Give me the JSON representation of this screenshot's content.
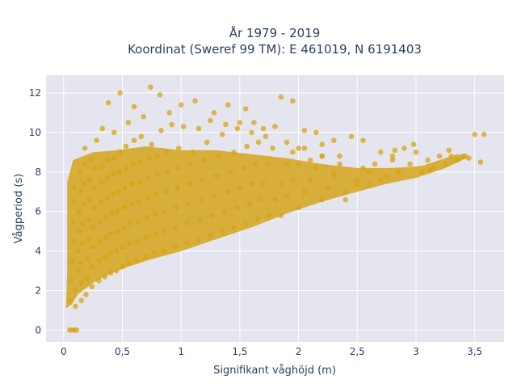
{
  "chart_data": {
    "type": "scatter",
    "title_lines": [
      "År 1979 - 2019",
      "Koordinat (Sweref 99 TM): E 461019, N 6191403"
    ],
    "xlabel": "Signifikant våghöjd (m)",
    "ylabel": "Vågperiod (s)",
    "xlim": [
      -0.15,
      3.75
    ],
    "ylim": [
      -0.6,
      12.9
    ],
    "x_ticks": [
      0,
      0.5,
      1,
      1.5,
      2,
      2.5,
      3,
      3.5
    ],
    "x_tick_labels": [
      "0",
      "0,5",
      "1",
      "1,5",
      "2",
      "2,5",
      "3",
      "3,5"
    ],
    "y_ticks": [
      0,
      2,
      4,
      6,
      8,
      10,
      12
    ],
    "y_tick_labels": [
      "0",
      "2",
      "4",
      "6",
      "8",
      "10",
      "12"
    ],
    "grid": true,
    "marker_color": "#d4a419",
    "background_color": "#e5e5ef",
    "series": [
      {
        "values_xy": [
          [
            0.05,
            0.0
          ],
          [
            0.07,
            0.0
          ],
          [
            0.09,
            0.0
          ],
          [
            0.11,
            0.0
          ],
          [
            0.05,
            1.5
          ],
          [
            0.06,
            2.5
          ],
          [
            0.07,
            3.5
          ],
          [
            0.08,
            4.5
          ],
          [
            0.08,
            5.5
          ],
          [
            0.09,
            6.5
          ],
          [
            0.09,
            7.2
          ],
          [
            0.1,
            1.2
          ],
          [
            0.1,
            2.0
          ],
          [
            0.12,
            3.0
          ],
          [
            0.12,
            4.0
          ],
          [
            0.13,
            5.0
          ],
          [
            0.13,
            6.0
          ],
          [
            0.14,
            7.0
          ],
          [
            0.14,
            8.0
          ],
          [
            0.15,
            1.5
          ],
          [
            0.15,
            2.4
          ],
          [
            0.15,
            3.4
          ],
          [
            0.16,
            4.4
          ],
          [
            0.16,
            5.4
          ],
          [
            0.17,
            6.4
          ],
          [
            0.17,
            7.4
          ],
          [
            0.18,
            8.4
          ],
          [
            0.18,
            9.2
          ],
          [
            0.19,
            1.8
          ],
          [
            0.2,
            2.6
          ],
          [
            0.2,
            3.6
          ],
          [
            0.21,
            4.6
          ],
          [
            0.21,
            5.6
          ],
          [
            0.22,
            6.6
          ],
          [
            0.22,
            7.6
          ],
          [
            0.23,
            8.6
          ],
          [
            0.24,
            2.2
          ],
          [
            0.24,
            3.2
          ],
          [
            0.25,
            4.2
          ],
          [
            0.25,
            5.2
          ],
          [
            0.26,
            6.2
          ],
          [
            0.26,
            7.2
          ],
          [
            0.27,
            8.2
          ],
          [
            0.28,
            9.6
          ],
          [
            0.3,
            2.5
          ],
          [
            0.3,
            3.5
          ],
          [
            0.31,
            4.5
          ],
          [
            0.31,
            5.5
          ],
          [
            0.32,
            6.5
          ],
          [
            0.32,
            7.5
          ],
          [
            0.33,
            8.3
          ],
          [
            0.33,
            10.2
          ],
          [
            0.35,
            2.7
          ],
          [
            0.35,
            3.7
          ],
          [
            0.36,
            4.7
          ],
          [
            0.36,
            5.7
          ],
          [
            0.37,
            6.7
          ],
          [
            0.37,
            7.7
          ],
          [
            0.38,
            8.6
          ],
          [
            0.38,
            11.5
          ],
          [
            0.4,
            2.9
          ],
          [
            0.4,
            3.9
          ],
          [
            0.41,
            4.9
          ],
          [
            0.41,
            5.9
          ],
          [
            0.42,
            6.9
          ],
          [
            0.42,
            7.9
          ],
          [
            0.43,
            8.7
          ],
          [
            0.43,
            10.0
          ],
          [
            0.45,
            3.0
          ],
          [
            0.45,
            4.0
          ],
          [
            0.46,
            5.0
          ],
          [
            0.46,
            6.0
          ],
          [
            0.47,
            7.0
          ],
          [
            0.47,
            8.0
          ],
          [
            0.48,
            9.0
          ],
          [
            0.48,
            12.0
          ],
          [
            0.5,
            3.2
          ],
          [
            0.5,
            4.2
          ],
          [
            0.51,
            5.2
          ],
          [
            0.52,
            6.2
          ],
          [
            0.52,
            7.2
          ],
          [
            0.53,
            8.2
          ],
          [
            0.53,
            9.3
          ],
          [
            0.55,
            10.5
          ],
          [
            0.56,
            3.4
          ],
          [
            0.56,
            4.4
          ],
          [
            0.57,
            5.4
          ],
          [
            0.58,
            6.4
          ],
          [
            0.58,
            7.4
          ],
          [
            0.59,
            8.4
          ],
          [
            0.6,
            9.6
          ],
          [
            0.6,
            11.3
          ],
          [
            0.62,
            3.5
          ],
          [
            0.63,
            4.5
          ],
          [
            0.63,
            5.5
          ],
          [
            0.64,
            6.5
          ],
          [
            0.65,
            7.5
          ],
          [
            0.65,
            8.5
          ],
          [
            0.66,
            9.8
          ],
          [
            0.68,
            10.8
          ],
          [
            0.7,
            3.7
          ],
          [
            0.7,
            4.7
          ],
          [
            0.71,
            5.7
          ],
          [
            0.72,
            6.7
          ],
          [
            0.72,
            7.7
          ],
          [
            0.73,
            8.7
          ],
          [
            0.74,
            12.3
          ],
          [
            0.75,
            9.4
          ],
          [
            0.77,
            3.9
          ],
          [
            0.78,
            4.9
          ],
          [
            0.78,
            5.9
          ],
          [
            0.79,
            6.9
          ],
          [
            0.8,
            7.9
          ],
          [
            0.8,
            8.8
          ],
          [
            0.82,
            11.9
          ],
          [
            0.83,
            10.1
          ],
          [
            0.85,
            4.0
          ],
          [
            0.86,
            5.0
          ],
          [
            0.86,
            6.0
          ],
          [
            0.87,
            7.0
          ],
          [
            0.88,
            8.0
          ],
          [
            0.88,
            9.0
          ],
          [
            0.9,
            11.0
          ],
          [
            0.92,
            10.4
          ],
          [
            0.95,
            4.2
          ],
          [
            0.95,
            5.2
          ],
          [
            0.96,
            6.2
          ],
          [
            0.97,
            7.2
          ],
          [
            0.97,
            8.2
          ],
          [
            0.98,
            9.2
          ],
          [
            1.0,
            11.4
          ],
          [
            1.02,
            10.3
          ],
          [
            1.05,
            4.4
          ],
          [
            1.05,
            5.4
          ],
          [
            1.06,
            6.4
          ],
          [
            1.07,
            7.4
          ],
          [
            1.08,
            8.4
          ],
          [
            1.1,
            9.0
          ],
          [
            1.12,
            11.6
          ],
          [
            1.15,
            10.2
          ],
          [
            1.15,
            4.6
          ],
          [
            1.16,
            5.6
          ],
          [
            1.17,
            6.6
          ],
          [
            1.18,
            7.6
          ],
          [
            1.2,
            8.6
          ],
          [
            1.22,
            9.5
          ],
          [
            1.25,
            10.6
          ],
          [
            1.28,
            11.0
          ],
          [
            1.25,
            4.8
          ],
          [
            1.26,
            5.8
          ],
          [
            1.28,
            6.8
          ],
          [
            1.3,
            7.8
          ],
          [
            1.32,
            8.8
          ],
          [
            1.35,
            9.9
          ],
          [
            1.38,
            10.4
          ],
          [
            1.4,
            11.4
          ],
          [
            1.35,
            5.0
          ],
          [
            1.37,
            6.0
          ],
          [
            1.4,
            7.0
          ],
          [
            1.42,
            8.0
          ],
          [
            1.45,
            9.0
          ],
          [
            1.48,
            10.2
          ],
          [
            1.5,
            10.5
          ],
          [
            1.55,
            11.2
          ],
          [
            1.45,
            5.2
          ],
          [
            1.48,
            6.2
          ],
          [
            1.5,
            7.2
          ],
          [
            1.53,
            8.2
          ],
          [
            1.56,
            9.3
          ],
          [
            1.6,
            10.0
          ],
          [
            1.62,
            10.5
          ],
          [
            1.7,
            10.2
          ],
          [
            1.55,
            5.4
          ],
          [
            1.58,
            6.4
          ],
          [
            1.6,
            7.4
          ],
          [
            1.63,
            8.4
          ],
          [
            1.66,
            9.5
          ],
          [
            1.72,
            9.8
          ],
          [
            1.8,
            10.3
          ],
          [
            1.85,
            11.8
          ],
          [
            1.65,
            5.6
          ],
          [
            1.68,
            6.6
          ],
          [
            1.7,
            7.4
          ],
          [
            1.74,
            8.4
          ],
          [
            1.78,
            9.2
          ],
          [
            1.9,
            9.5
          ],
          [
            1.95,
            11.6
          ],
          [
            2.0,
            9.2
          ],
          [
            1.75,
            5.8
          ],
          [
            1.8,
            6.6
          ],
          [
            1.85,
            7.4
          ],
          [
            1.9,
            8.4
          ],
          [
            1.95,
            9.0
          ],
          [
            2.05,
            10.1
          ],
          [
            2.1,
            8.6
          ],
          [
            2.2,
            9.4
          ],
          [
            1.85,
            5.8
          ],
          [
            1.9,
            6.8
          ],
          [
            1.95,
            7.6
          ],
          [
            2.0,
            8.4
          ],
          [
            2.05,
            9.2
          ],
          [
            2.15,
            10.0
          ],
          [
            2.2,
            8.8
          ],
          [
            2.3,
            9.6
          ],
          [
            2.0,
            6.2
          ],
          [
            2.05,
            7.0
          ],
          [
            2.1,
            7.6
          ],
          [
            2.15,
            8.2
          ],
          [
            2.2,
            8.8
          ],
          [
            2.25,
            7.2
          ],
          [
            2.3,
            7.8
          ],
          [
            2.35,
            8.4
          ],
          [
            2.2,
            6.6
          ],
          [
            2.25,
            7.2
          ],
          [
            2.3,
            8.0
          ],
          [
            2.35,
            8.8
          ],
          [
            2.4,
            6.6
          ],
          [
            2.45,
            9.8
          ],
          [
            2.5,
            7.6
          ],
          [
            2.55,
            9.6
          ],
          [
            2.4,
            7.0
          ],
          [
            2.5,
            7.4
          ],
          [
            2.55,
            8.2
          ],
          [
            2.6,
            7.4
          ],
          [
            2.65,
            8.4
          ],
          [
            2.7,
            9.0
          ],
          [
            2.75,
            7.8
          ],
          [
            2.8,
            8.6
          ],
          [
            2.6,
            8.0
          ],
          [
            2.7,
            7.6
          ],
          [
            2.8,
            8.8
          ],
          [
            2.85,
            8.0
          ],
          [
            2.9,
            9.2
          ],
          [
            2.95,
            8.4
          ],
          [
            3.0,
            9.0
          ],
          [
            3.05,
            8.0
          ],
          [
            3.1,
            8.6
          ],
          [
            3.15,
            8.2
          ],
          [
            3.2,
            8.8
          ],
          [
            3.25,
            8.4
          ],
          [
            3.3,
            8.8
          ],
          [
            3.35,
            8.6
          ],
          [
            3.4,
            8.8
          ],
          [
            3.45,
            8.7
          ],
          [
            3.5,
            9.9
          ],
          [
            3.55,
            8.5
          ],
          [
            3.58,
            9.9
          ],
          [
            3.42,
            8.8
          ],
          [
            3.28,
            9.1
          ],
          [
            3.12,
            8.1
          ],
          [
            2.98,
            9.4
          ],
          [
            2.82,
            9.1
          ]
        ]
      }
    ]
  }
}
